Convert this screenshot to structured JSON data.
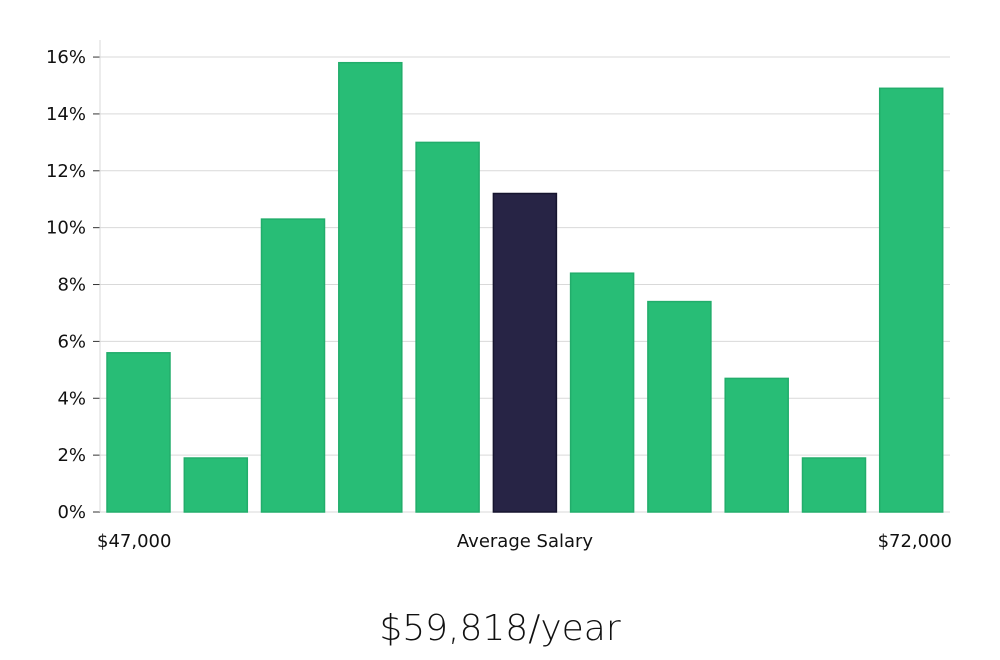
{
  "salary_headline": "$59,818/year",
  "colors": {
    "bar": "#28bd76",
    "highlight_bar": "#272445"
  },
  "chart_data": {
    "type": "bar",
    "title": "",
    "ylabel": "",
    "ylim": [
      0,
      16.6
    ],
    "ytick_values": [
      0,
      2,
      4,
      6,
      8,
      10,
      12,
      14,
      16
    ],
    "ytick_labels": [
      "0%",
      "2%",
      "4%",
      "6%",
      "8%",
      "10%",
      "12%",
      "14%",
      "16%"
    ],
    "values": [
      5.6,
      1.9,
      10.3,
      15.8,
      13.0,
      11.2,
      8.4,
      7.4,
      4.7,
      1.9,
      14.9
    ],
    "highlight_index": 5,
    "x_labels": {
      "left": "$47,000",
      "center": "Average Salary",
      "right": "$72,000"
    },
    "grid": true
  }
}
